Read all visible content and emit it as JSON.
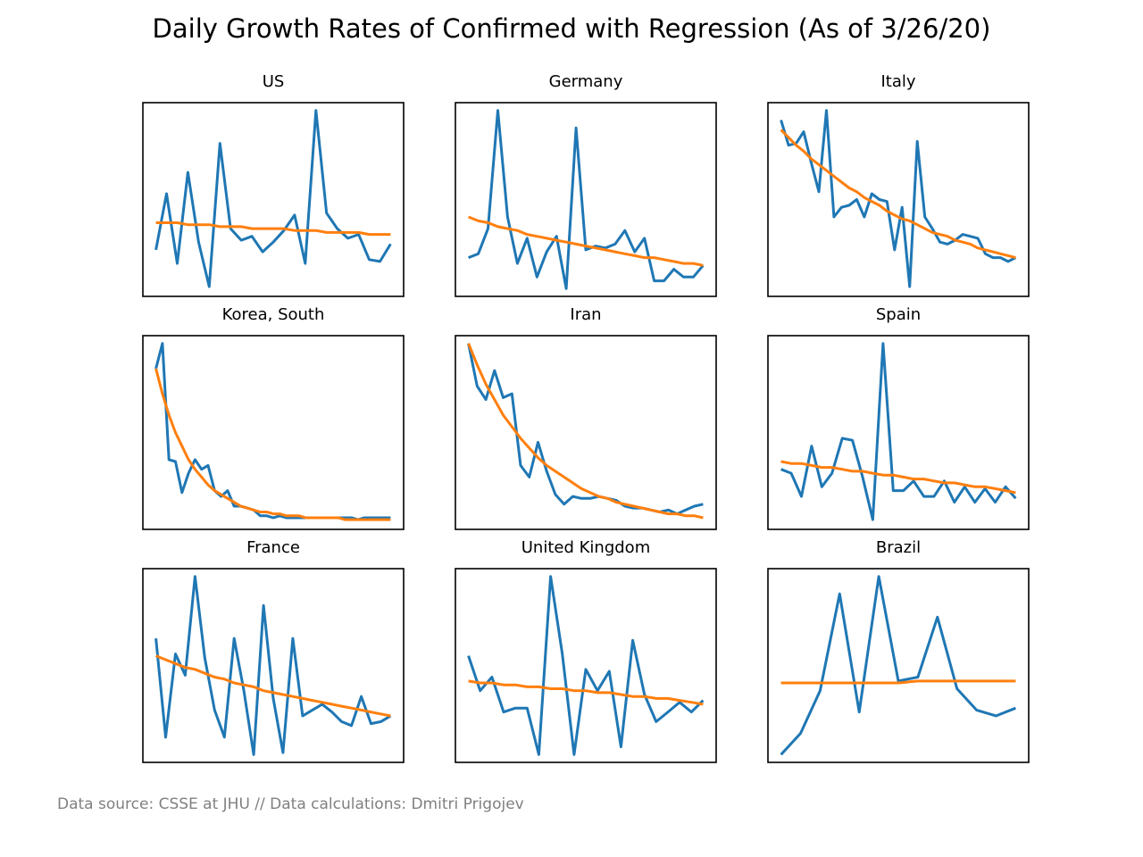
{
  "title": "Daily Growth Rates of Confirmed with Regression (As of 3/26/20)",
  "footnote": "Data source: CSSE at JHU // Data calculations: Dmitri Prigojev",
  "chart_data": [
    {
      "type": "line",
      "title": "US",
      "ylim": [
        0,
        100
      ],
      "series": [
        {
          "color": "#1f77b4",
          "values": [
            24,
            53,
            17,
            64,
            28,
            5,
            79,
            35,
            29,
            31,
            23,
            28,
            34,
            42,
            17,
            96,
            43,
            35,
            30,
            32,
            19,
            18,
            27
          ]
        },
        {
          "color": "#ff7f0e",
          "values": [
            38,
            38,
            38,
            37,
            37,
            37,
            36,
            36,
            36,
            35,
            35,
            35,
            35,
            34,
            34,
            34,
            33,
            33,
            33,
            33,
            32,
            32,
            32
          ]
        }
      ]
    },
    {
      "type": "line",
      "title": "Germany",
      "ylim": [
        0,
        100
      ],
      "series": [
        {
          "color": "#1f77b4",
          "values": [
            20,
            22,
            35,
            96,
            41,
            17,
            30,
            10,
            23,
            31,
            4,
            87,
            24,
            26,
            25,
            27,
            34,
            23,
            30,
            8,
            8,
            14,
            10,
            10,
            16
          ]
        },
        {
          "color": "#ff7f0e",
          "values": [
            41,
            39,
            38,
            36,
            35,
            34,
            32,
            31,
            30,
            29,
            28,
            27,
            26,
            25,
            24,
            23,
            22,
            21,
            20,
            20,
            19,
            18,
            17,
            17,
            16
          ]
        }
      ]
    },
    {
      "type": "line",
      "title": "Italy",
      "ylim": [
        0,
        100
      ],
      "series": [
        {
          "color": "#1f77b4",
          "values": [
            91,
            78,
            79,
            85,
            69,
            54,
            96,
            41,
            46,
            47,
            50,
            41,
            53,
            50,
            49,
            24,
            46,
            5,
            80,
            41,
            35,
            28,
            27,
            29,
            32,
            31,
            30,
            22,
            20,
            20,
            18,
            20
          ]
        },
        {
          "color": "#ff7f0e",
          "values": [
            86,
            82,
            78,
            75,
            71,
            68,
            65,
            62,
            59,
            56,
            54,
            51,
            49,
            47,
            44,
            42,
            40,
            39,
            37,
            35,
            33,
            32,
            31,
            29,
            28,
            27,
            25,
            24,
            23,
            22,
            21,
            20
          ]
        }
      ]
    },
    {
      "type": "line",
      "title": "Korea, South",
      "ylim": [
        0,
        100
      ],
      "series": [
        {
          "color": "#1f77b4",
          "values": [
            83,
            96,
            36,
            35,
            19,
            29,
            36,
            31,
            33,
            20,
            17,
            20,
            12,
            12,
            11,
            10,
            7,
            7,
            6,
            7,
            6,
            6,
            6,
            6,
            6,
            6,
            6,
            6,
            6,
            6,
            6,
            5,
            6,
            6,
            6,
            6,
            6
          ]
        },
        {
          "color": "#ff7f0e",
          "values": [
            83,
            70,
            59,
            50,
            43,
            36,
            31,
            27,
            23,
            20,
            18,
            16,
            14,
            12,
            11,
            10,
            9,
            9,
            8,
            8,
            7,
            7,
            7,
            6,
            6,
            6,
            6,
            6,
            6,
            5,
            5,
            5,
            5,
            5,
            5,
            5,
            5
          ]
        }
      ]
    },
    {
      "type": "line",
      "title": "Iran",
      "ylim": [
        0,
        100
      ],
      "series": [
        {
          "color": "#1f77b4",
          "values": [
            96,
            74,
            67,
            82,
            68,
            70,
            33,
            27,
            45,
            30,
            18,
            13,
            17,
            16,
            16,
            17,
            16,
            15,
            12,
            11,
            11,
            10,
            9,
            10,
            8,
            10,
            12,
            13
          ]
        },
        {
          "color": "#ff7f0e",
          "values": [
            96,
            85,
            75,
            67,
            59,
            53,
            47,
            42,
            37,
            33,
            30,
            27,
            24,
            21,
            19,
            17,
            16,
            14,
            13,
            12,
            11,
            10,
            9,
            8,
            8,
            7,
            7,
            6
          ]
        }
      ]
    },
    {
      "type": "line",
      "title": "Spain",
      "ylim": [
        0,
        100
      ],
      "series": [
        {
          "color": "#1f77b4",
          "values": [
            31,
            29,
            17,
            43,
            22,
            29,
            47,
            46,
            27,
            5,
            96,
            20,
            20,
            25,
            17,
            17,
            25,
            14,
            22,
            14,
            21,
            14,
            22,
            16
          ]
        },
        {
          "color": "#ff7f0e",
          "values": [
            35,
            34,
            34,
            33,
            32,
            32,
            31,
            30,
            30,
            29,
            28,
            28,
            27,
            26,
            26,
            25,
            24,
            24,
            23,
            22,
            22,
            21,
            20,
            19
          ]
        }
      ]
    },
    {
      "type": "line",
      "title": "France",
      "ylim": [
        0,
        100
      ],
      "series": [
        {
          "color": "#1f77b4",
          "values": [
            64,
            13,
            56,
            45,
            96,
            54,
            27,
            13,
            64,
            37,
            4,
            81,
            33,
            5,
            64,
            24,
            27,
            30,
            26,
            21,
            19,
            34,
            20,
            21,
            24
          ]
        },
        {
          "color": "#ff7f0e",
          "values": [
            55,
            53,
            51,
            49,
            48,
            46,
            44,
            43,
            41,
            40,
            39,
            37,
            36,
            35,
            34,
            33,
            32,
            31,
            30,
            29,
            28,
            27,
            26,
            25,
            24
          ]
        }
      ]
    },
    {
      "type": "line",
      "title": "United Kingdom",
      "ylim": [
        0,
        100
      ],
      "series": [
        {
          "color": "#1f77b4",
          "values": [
            55,
            37,
            44,
            26,
            28,
            28,
            4,
            96,
            56,
            4,
            48,
            37,
            47,
            8,
            63,
            35,
            21,
            26,
            31,
            26,
            32
          ]
        },
        {
          "color": "#ff7f0e",
          "values": [
            42,
            41,
            41,
            40,
            40,
            39,
            39,
            38,
            38,
            37,
            37,
            36,
            36,
            35,
            34,
            34,
            33,
            33,
            32,
            31,
            30
          ]
        }
      ]
    },
    {
      "type": "line",
      "title": "Brazil",
      "ylim": [
        0,
        100
      ],
      "series": [
        {
          "color": "#1f77b4",
          "values": [
            4,
            15,
            37,
            87,
            26,
            96,
            42,
            44,
            75,
            38,
            27,
            24,
            28
          ]
        },
        {
          "color": "#ff7f0e",
          "values": [
            41,
            41,
            41,
            41,
            41,
            41,
            41,
            42,
            42,
            42,
            42,
            42,
            42
          ]
        }
      ]
    }
  ]
}
